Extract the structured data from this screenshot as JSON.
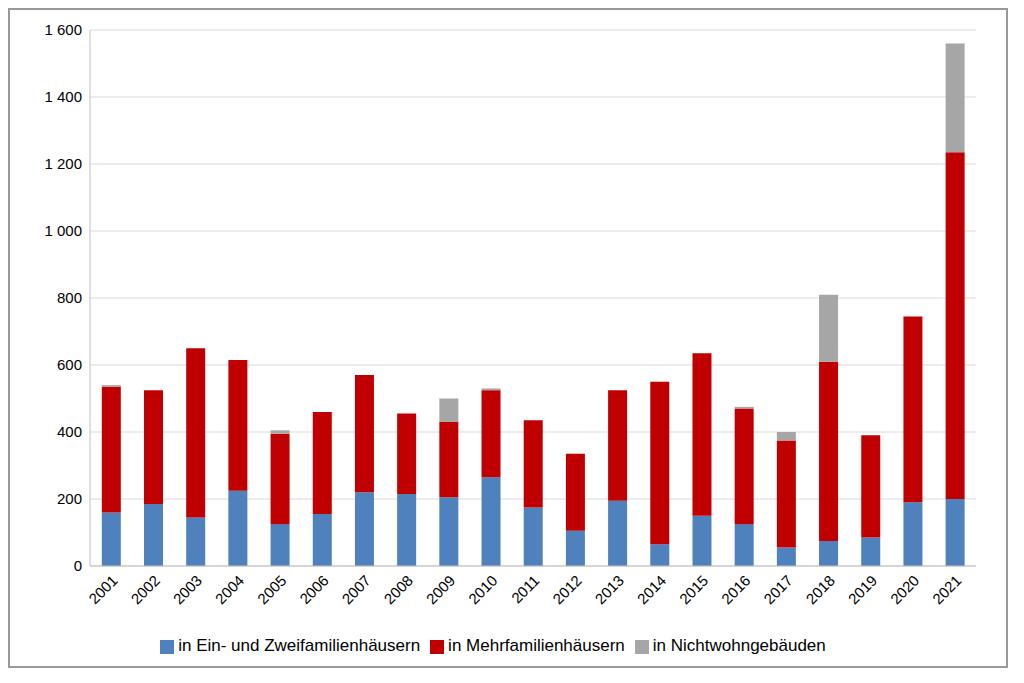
{
  "chart_data": {
    "type": "bar",
    "stacked": true,
    "grid": true,
    "legend": "bottom",
    "categories": [
      "2001",
      "2002",
      "2003",
      "2004",
      "2005",
      "2006",
      "2007",
      "2008",
      "2009",
      "2010",
      "2011",
      "2012",
      "2013",
      "2014",
      "2015",
      "2016",
      "2017",
      "2018",
      "2019",
      "2020",
      "2021"
    ],
    "series": [
      {
        "name": "in Ein- und Zweifamilienhäusern",
        "color": "#4f81bd",
        "values": [
          160,
          185,
          145,
          225,
          125,
          155,
          220,
          215,
          205,
          265,
          175,
          105,
          195,
          65,
          150,
          125,
          55,
          75,
          85,
          190,
          200
        ]
      },
      {
        "name": "in Mehrfamilienhäusern",
        "color": "#c00000",
        "values": [
          375,
          340,
          505,
          390,
          270,
          305,
          350,
          240,
          225,
          260,
          260,
          230,
          330,
          485,
          485,
          345,
          320,
          535,
          305,
          555,
          1035
        ]
      },
      {
        "name": "in Nichtwohngebäuden",
        "color": "#a6a6a6",
        "values": [
          5,
          0,
          0,
          0,
          10,
          0,
          0,
          0,
          70,
          5,
          0,
          0,
          0,
          0,
          0,
          5,
          25,
          200,
          0,
          0,
          325
        ]
      }
    ],
    "ylim": [
      0,
      1600
    ],
    "yticks": [
      0,
      200,
      400,
      600,
      800,
      {
        "value": 1000,
        "label": "1 000"
      },
      {
        "value": 1200,
        "label": "1 200"
      },
      {
        "value": 1400,
        "label": "1 400"
      },
      {
        "value": 1600,
        "label": "1 600"
      }
    ]
  }
}
